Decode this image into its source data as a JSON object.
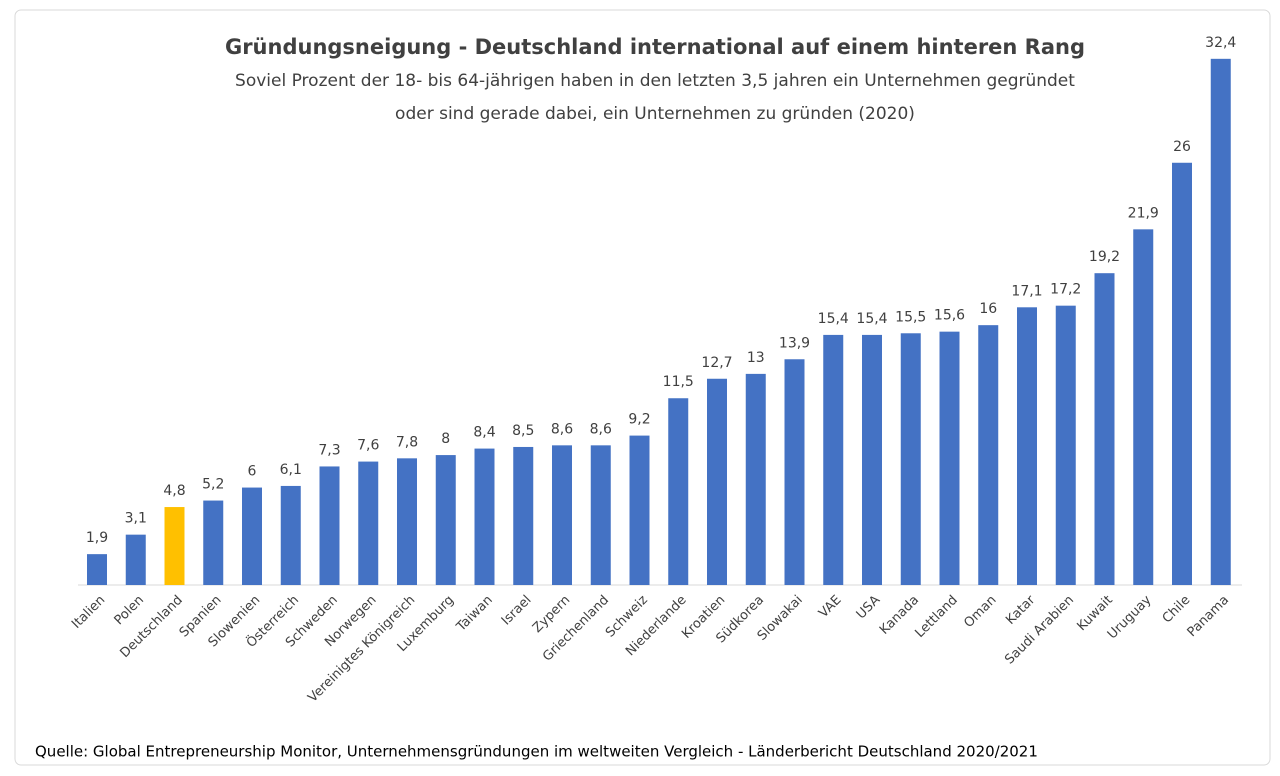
{
  "chart_data": {
    "type": "bar",
    "title": "Gründungsneigung - Deutschland international auf einem hinteren Rang",
    "subtitle": [
      "Soviel Prozent der 18- bis 64-jährigen haben in den letzten 3,5 jahren ein Unternehmen gegründet",
      "oder sind gerade dabei, ein Unternehmen zu gründen (2020)"
    ],
    "source": "Quelle: Global Entrepreneurship Monitor, Unternehmensgründungen im weltweiten Vergleich - Länderbericht Deutschland 2020/2021",
    "categories": [
      "Italien",
      "Polen",
      "Deutschland",
      "Spanien",
      "Slowenien",
      "Österreich",
      "Schweden",
      "Norwegen",
      "Vereinigtes Königreich",
      "Luxemburg",
      "Taiwan",
      "Israel",
      "Zypern",
      "Griechenland",
      "Schweiz",
      "Niederlande",
      "Kroatien",
      "Südkorea",
      "Slowakai",
      "VAE",
      "USA",
      "Kanada",
      "Lettland",
      "Oman",
      "Katar",
      "Saudi Arabien",
      "Kuwait",
      "Uruguay",
      "Chile",
      "Panama"
    ],
    "values": [
      1.9,
      3.1,
      4.8,
      5.2,
      6,
      6.1,
      7.3,
      7.6,
      7.8,
      8,
      8.4,
      8.5,
      8.6,
      8.6,
      9.2,
      11.5,
      12.7,
      13,
      13.9,
      15.4,
      15.4,
      15.5,
      15.6,
      16,
      17.1,
      17.2,
      19.2,
      21.9,
      26,
      32.4
    ],
    "value_labels": [
      "1,9",
      "3,1",
      "4,8",
      "5,2",
      "6",
      "6,1",
      "7,3",
      "7,6",
      "7,8",
      "8",
      "8,4",
      "8,5",
      "8,6",
      "8,6",
      "9,2",
      "11,5",
      "12,7",
      "13",
      "13,9",
      "15,4",
      "15,4",
      "15,5",
      "15,6",
      "16",
      "17,1",
      "17,2",
      "19,2",
      "21,9",
      "26",
      "32,4"
    ],
    "colors": [
      "#4472c4",
      "#4472c4",
      "#ffc000",
      "#4472c4",
      "#4472c4",
      "#4472c4",
      "#4472c4",
      "#4472c4",
      "#4472c4",
      "#4472c4",
      "#4472c4",
      "#4472c4",
      "#4472c4",
      "#4472c4",
      "#4472c4",
      "#4472c4",
      "#4472c4",
      "#4472c4",
      "#4472c4",
      "#4472c4",
      "#4472c4",
      "#4472c4",
      "#4472c4",
      "#4472c4",
      "#4472c4",
      "#4472c4",
      "#4472c4",
      "#4472c4",
      "#4472c4",
      "#4472c4"
    ]
  }
}
